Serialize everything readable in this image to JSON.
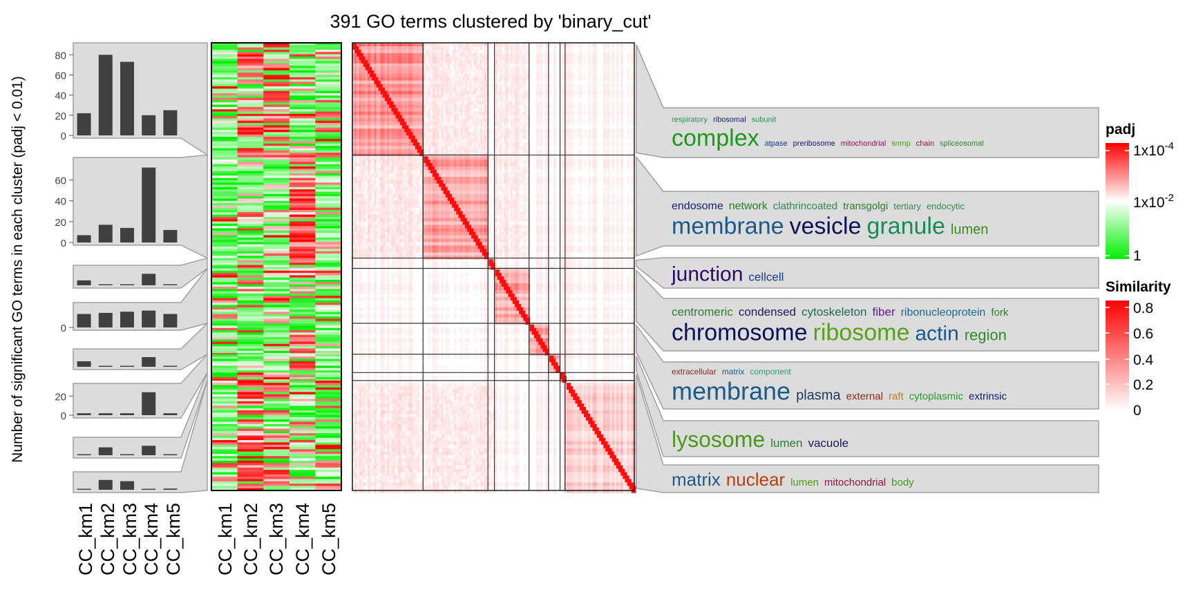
{
  "chart_data": {
    "type": "heatmap",
    "title": "391 GO terms clustered by 'binary_cut'",
    "ylabel": "Number of significant GO terms in each cluster (padj < 0.01)",
    "columns": [
      "CC_km1",
      "CC_km2",
      "CC_km3",
      "CC_km4",
      "CC_km5"
    ],
    "bar_panels": [
      {
        "cluster": 1,
        "values": [
          22,
          80,
          73,
          20,
          25
        ],
        "ylim": [
          0,
          85
        ],
        "ticks": [
          "0",
          "20",
          "40",
          "60",
          "80"
        ]
      },
      {
        "cluster": 2,
        "values": [
          7,
          17,
          14,
          72,
          12
        ],
        "ylim": [
          0,
          75
        ],
        "ticks": [
          "0",
          "20",
          "40",
          "60"
        ]
      },
      {
        "cluster": 3,
        "values": [
          3,
          0,
          0,
          7,
          0
        ],
        "ylim": [
          0,
          8
        ],
        "ticks": []
      },
      {
        "cluster": 4,
        "values": [
          12,
          13,
          14,
          15,
          12
        ],
        "ylim": [
          0,
          16
        ],
        "ticks": [
          "0"
        ]
      },
      {
        "cluster": 5,
        "values": [
          4,
          0,
          0,
          7,
          0
        ],
        "ylim": [
          0,
          8
        ],
        "ticks": []
      },
      {
        "cluster": 6,
        "values": [
          2,
          2,
          2,
          24,
          2
        ],
        "ylim": [
          0,
          26
        ],
        "ticks": [
          "0",
          "20"
        ]
      },
      {
        "cluster": 7,
        "values": [
          0,
          5,
          0,
          6,
          0
        ],
        "ylim": [
          0,
          7
        ],
        "ticks": []
      },
      {
        "cluster": 8,
        "values": [
          0,
          8,
          7,
          0,
          1
        ],
        "ylim": [
          0,
          9
        ],
        "ticks": []
      }
    ],
    "similarity_blocks": [
      {
        "cluster": 1,
        "size": 98
      },
      {
        "cluster": 2,
        "size": 90
      },
      {
        "cluster": 3,
        "size": 9
      },
      {
        "cluster": 4,
        "size": 48
      },
      {
        "cluster": 5,
        "size": 27
      },
      {
        "cluster": 6,
        "size": 16
      },
      {
        "cluster": 7,
        "size": 7
      },
      {
        "cluster": 8,
        "size": 96
      }
    ],
    "wordclouds": [
      {
        "lines": [
          [
            {
              "t": "respiratory",
              "c": "#2e8b57",
              "s": 11
            },
            {
              "t": "ribosomal",
              "c": "#1a1a70",
              "s": 11
            },
            {
              "t": "subunit",
              "c": "#2e8b57",
              "s": 11
            }
          ],
          [
            {
              "t": "complex",
              "c": "#1a9a1a",
              "s": 34
            },
            {
              "t": "atpase",
              "c": "#1a3a9a",
              "s": 11
            },
            {
              "t": "preribosome",
              "c": "#1a1a70",
              "s": 11
            },
            {
              "t": "mitochondrial",
              "c": "#8b1a4a",
              "s": 11
            },
            {
              "t": "snrnp",
              "c": "#4a9a1a",
              "s": 11
            },
            {
              "t": "chain",
              "c": "#8b1a4a",
              "s": 11
            },
            {
              "t": "spliceosomal",
              "c": "#2e8b2e",
              "s": 11
            }
          ]
        ]
      },
      {
        "lines": [
          [
            {
              "t": "endosome",
              "c": "#1a1a70",
              "s": 16
            },
            {
              "t": "network",
              "c": "#2e7a2e",
              "s": 16
            },
            {
              "t": "clathrincoated",
              "c": "#2e8b57",
              "s": 15
            },
            {
              "t": "transgolgi",
              "c": "#2e7a2e",
              "s": 15
            },
            {
              "t": "tertiary",
              "c": "#2e8b57",
              "s": 13
            },
            {
              "t": "endocytic",
              "c": "#2e8b57",
              "s": 13
            }
          ],
          [
            {
              "t": "membrane",
              "c": "#1a5a8a",
              "s": 34
            },
            {
              "t": "vesicle",
              "c": "#0d0d5a",
              "s": 34
            },
            {
              "t": "granule",
              "c": "#1a8a5a",
              "s": 34
            },
            {
              "t": "lumen",
              "c": "#3a8a1a",
              "s": 20
            }
          ]
        ]
      },
      {
        "lines": [
          [
            {
              "t": "junction",
              "c": "#2a0a6a",
              "s": 30
            },
            {
              "t": "cellcell",
              "c": "#1a3a8a",
              "s": 17
            }
          ]
        ]
      },
      {
        "lines": [
          [
            {
              "t": "centromeric",
              "c": "#2e7a2e",
              "s": 17
            },
            {
              "t": "condensed",
              "c": "#1a1a5a",
              "s": 17
            },
            {
              "t": "cytoskeleton",
              "c": "#1a6a5a",
              "s": 17
            },
            {
              "t": "fiber",
              "c": "#5a1a8a",
              "s": 17
            },
            {
              "t": "ribonucleoprotein",
              "c": "#1a6a8a",
              "s": 16
            },
            {
              "t": "fork",
              "c": "#2e7a2e",
              "s": 15
            }
          ],
          [
            {
              "t": "chromosome",
              "c": "#0d0d5a",
              "s": 34
            },
            {
              "t": "ribosome",
              "c": "#5aa01a",
              "s": 34
            },
            {
              "t": "actin",
              "c": "#1a5a8a",
              "s": 30
            },
            {
              "t": "region",
              "c": "#2e8b2e",
              "s": 22
            }
          ]
        ]
      },
      {
        "lines": [
          [
            {
              "t": "extracellular",
              "c": "#8b2a1a",
              "s": 12
            },
            {
              "t": "matrix",
              "c": "#1a5a8a",
              "s": 12
            },
            {
              "t": "component",
              "c": "#2e9a7a",
              "s": 12
            }
          ],
          [
            {
              "t": "membrane",
              "c": "#1a5a8a",
              "s": 36
            },
            {
              "t": "plasma",
              "c": "#1a3a5a",
              "s": 20
            },
            {
              "t": "external",
              "c": "#8b2a1a",
              "s": 15
            },
            {
              "t": "raft",
              "c": "#c87a1a",
              "s": 15
            },
            {
              "t": "cytoplasmic",
              "c": "#2e9a2e",
              "s": 15
            },
            {
              "t": "extrinsic",
              "c": "#1a1a70",
              "s": 15
            }
          ]
        ]
      },
      {
        "lines": [
          [
            {
              "t": "lysosome",
              "c": "#4a9a1a",
              "s": 32
            },
            {
              "t": "lumen",
              "c": "#2e7a2e",
              "s": 17
            },
            {
              "t": "vacuole",
              "c": "#1a1a5a",
              "s": 17
            }
          ]
        ]
      },
      {
        "lines": [
          [
            {
              "t": "matrix",
              "c": "#1a5a8a",
              "s": 26
            },
            {
              "t": "nuclear",
              "c": "#b8400a",
              "s": 26
            },
            {
              "t": "lumen",
              "c": "#5a9a1a",
              "s": 15
            },
            {
              "t": "mitochondrial",
              "c": "#8b1a3a",
              "s": 15
            },
            {
              "t": "body",
              "c": "#4a9a1a",
              "s": 15
            }
          ]
        ]
      }
    ]
  },
  "legend_padj": {
    "title": "padj",
    "labels": [
      {
        "base": "1x10",
        "exp": "-4"
      },
      {
        "base": "1x10",
        "exp": "-2"
      },
      {
        "base": "1",
        "exp": ""
      }
    ]
  },
  "legend_similarity": {
    "title": "Similarity",
    "labels": [
      "0.8",
      "0.6",
      "0.4",
      "0.2",
      "0"
    ]
  },
  "colors": {
    "high": "#ff0000",
    "mid": "#ffffff",
    "low": "#00ee00",
    "bar": "#404040",
    "panel": "#dcdcdc"
  }
}
